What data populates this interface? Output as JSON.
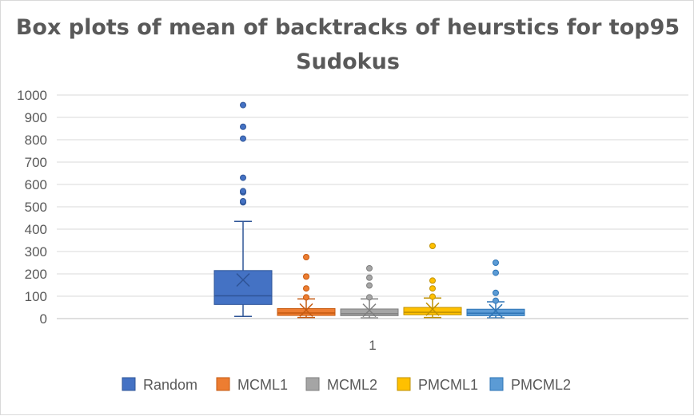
{
  "chart_data": {
    "type": "box",
    "title_line1": "Box plots of mean of backtracks of heurstics for top95",
    "title_line2": "Sudokus",
    "categories": [
      "1"
    ],
    "ylim": [
      0,
      1000
    ],
    "y_ticks": [
      "0",
      "100",
      "200",
      "300",
      "400",
      "500",
      "600",
      "700",
      "800",
      "900",
      "1000"
    ],
    "grid": true,
    "legend_position": "bottom",
    "series": [
      {
        "name": "Random",
        "color": "#4472c4",
        "edge": "#2f5597",
        "min": 10,
        "q1": 63,
        "median": 102,
        "q3": 215,
        "max": 435,
        "mean": 173,
        "outliers": [
          520,
          525,
          565,
          570,
          630,
          805,
          858,
          955
        ]
      },
      {
        "name": "MCML1",
        "color": "#ed7d31",
        "edge": "#c55a11",
        "min": 5,
        "q1": 14,
        "median": 25,
        "q3": 45,
        "max": 88,
        "mean": 38,
        "outliers": [
          95,
          135,
          188,
          275
        ]
      },
      {
        "name": "MCML2",
        "color": "#a5a5a5",
        "edge": "#7f7f7f",
        "min": 3,
        "q1": 13,
        "median": 22,
        "q3": 43,
        "max": 88,
        "mean": 37,
        "outliers": [
          95,
          148,
          183,
          225
        ]
      },
      {
        "name": "PMCML1",
        "color": "#ffc000",
        "edge": "#bf9000",
        "min": 5,
        "q1": 17,
        "median": 28,
        "q3": 50,
        "max": 92,
        "mean": 42,
        "outliers": [
          98,
          135,
          170,
          325
        ]
      },
      {
        "name": "PMCML2",
        "color": "#5b9bd5",
        "edge": "#2e75b6",
        "min": 3,
        "q1": 13,
        "median": 24,
        "q3": 42,
        "max": 75,
        "mean": 35,
        "outliers": [
          80,
          115,
          205,
          250
        ]
      }
    ]
  }
}
